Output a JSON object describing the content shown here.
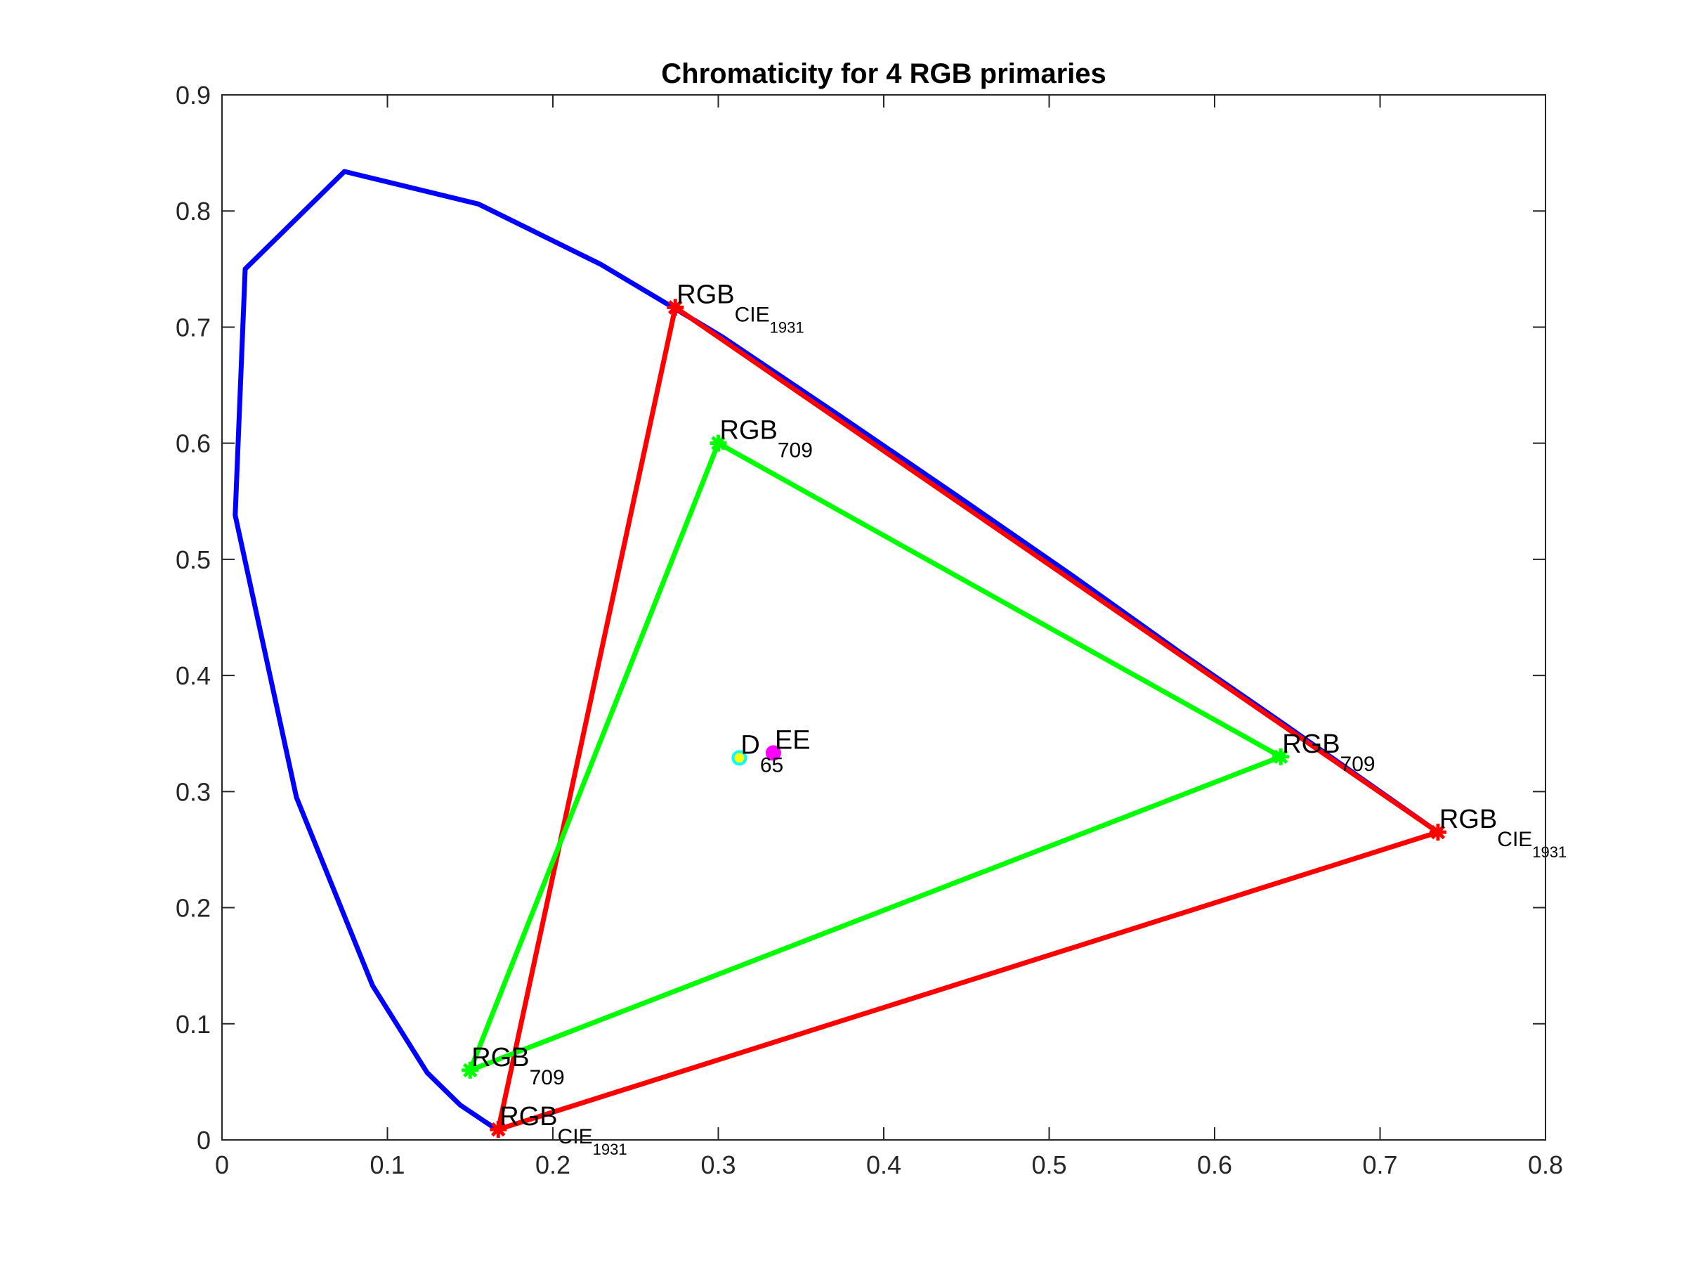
{
  "chart_data": {
    "type": "line",
    "title": "Chromaticity for 4 RGB primaries",
    "xlabel": "",
    "ylabel": "",
    "xlim": [
      0,
      0.8
    ],
    "ylim": [
      0,
      0.9
    ],
    "x_ticks": [
      0,
      0.1,
      0.2,
      0.3,
      0.4,
      0.5,
      0.6,
      0.7,
      0.8
    ],
    "y_ticks": [
      0,
      0.1,
      0.2,
      0.3,
      0.4,
      0.5,
      0.6,
      0.7,
      0.8,
      0.9
    ],
    "x_tick_labels": [
      "0",
      "0.1",
      "0.2",
      "0.3",
      "0.4",
      "0.5",
      "0.6",
      "0.7",
      "0.8"
    ],
    "y_tick_labels": [
      "0",
      "0.1",
      "0.2",
      "0.3",
      "0.4",
      "0.5",
      "0.6",
      "0.7",
      "0.8",
      "0.9"
    ],
    "grid": false,
    "series": [
      {
        "color": "#0000ff",
        "kind": "spectral-locus",
        "x": [
          0.166,
          0.144,
          0.124,
          0.091,
          0.045,
          0.008,
          0.014,
          0.074,
          0.155,
          0.229,
          0.302,
          0.373,
          0.444,
          0.513,
          0.579,
          0.641,
          0.692,
          0.735
        ],
        "y": [
          0.009,
          0.03,
          0.058,
          0.133,
          0.295,
          0.538,
          0.75,
          0.834,
          0.806,
          0.754,
          0.692,
          0.624,
          0.555,
          0.487,
          0.42,
          0.359,
          0.308,
          0.265
        ]
      },
      {
        "color": "#ff0000",
        "kind": "triangle",
        "x": [
          0.735,
          0.274,
          0.167,
          0.735
        ],
        "y": [
          0.265,
          0.717,
          0.009,
          0.265
        ]
      },
      {
        "color": "#00ff00",
        "kind": "triangle",
        "x": [
          0.64,
          0.3,
          0.15,
          0.64
        ],
        "y": [
          0.33,
          0.6,
          0.06,
          0.33
        ]
      }
    ],
    "points": [
      {
        "label": "D65",
        "x": 0.3127,
        "y": 0.329,
        "color": "#00ffff"
      },
      {
        "label": "EE",
        "x": 0.3333,
        "y": 0.3333,
        "color": "#ff00ff"
      }
    ],
    "annotations": [
      {
        "x": 0.274,
        "y": 0.717,
        "main": "RGB",
        "sub": "CIE",
        "subsub": "1931"
      },
      {
        "x": 0.735,
        "y": 0.265,
        "main": "RGB",
        "sub": "CIE",
        "subsub": "1931"
      },
      {
        "x": 0.167,
        "y": 0.009,
        "main": "RGB",
        "sub": "CIE",
        "subsub": "1931"
      },
      {
        "x": 0.3,
        "y": 0.6,
        "main": "RGB",
        "sub": "709",
        "subsub": ""
      },
      {
        "x": 0.64,
        "y": 0.33,
        "main": "RGB",
        "sub": "709",
        "subsub": ""
      },
      {
        "x": 0.15,
        "y": 0.06,
        "main": "RGB",
        "sub": "709",
        "subsub": ""
      },
      {
        "x": 0.3127,
        "y": 0.329,
        "main": "D",
        "sub": "65",
        "subsub": ""
      },
      {
        "x": 0.3333,
        "y": 0.3333,
        "main": "EE",
        "sub": "",
        "subsub": ""
      }
    ]
  }
}
